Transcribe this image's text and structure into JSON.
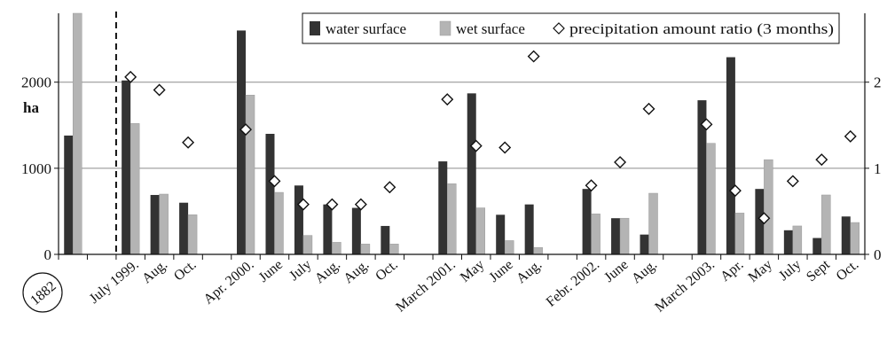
{
  "chart_data": {
    "type": "bar",
    "ylabel": "ha",
    "ylim": [
      0,
      2800
    ],
    "y2lim": [
      0,
      2.8
    ],
    "y_ticks": [
      "0",
      "1000",
      "2000"
    ],
    "y_tick_values": [
      0,
      1000,
      2000
    ],
    "y2_ticks": [
      "0",
      "1",
      "2"
    ],
    "y2_tick_values": [
      0,
      1,
      2
    ],
    "grid": true,
    "legend_position": "top-right",
    "categories": [
      "1882",
      "",
      "July 1999.",
      "Aug.",
      "Oct.",
      "",
      "Apr. 2000.",
      "June",
      "July",
      "Aug.",
      "Aug.",
      "Oct.",
      "",
      "March 2001.",
      "May",
      "June",
      "Aug.",
      "",
      "Febr. 2002.",
      "June",
      "Aug.",
      "",
      "March 2003.",
      "Apr.",
      "May",
      "July",
      "Sept",
      "Oct."
    ],
    "reference_category": "1882",
    "dashed_separator_after_index": 1,
    "series": [
      {
        "name": "water surface",
        "kind": "bar",
        "color": "#333333",
        "values": [
          1380,
          null,
          2020,
          690,
          600,
          null,
          2600,
          1400,
          800,
          580,
          540,
          330,
          null,
          1080,
          1870,
          460,
          580,
          null,
          760,
          420,
          230,
          null,
          1790,
          2290,
          760,
          280,
          190,
          440
        ]
      },
      {
        "name": "wet surface",
        "kind": "bar",
        "color": "#b4b4b4",
        "values": [
          2800,
          null,
          1520,
          700,
          460,
          null,
          1850,
          720,
          220,
          140,
          120,
          120,
          null,
          820,
          540,
          160,
          80,
          null,
          470,
          420,
          710,
          null,
          1290,
          480,
          1100,
          330,
          690,
          370
        ]
      },
      {
        "name": "precipitation amount ratio (3 months)",
        "kind": "marker",
        "axis": "right",
        "values": [
          null,
          null,
          2.06,
          1.91,
          1.3,
          null,
          1.45,
          0.85,
          0.58,
          0.58,
          0.58,
          0.78,
          null,
          1.8,
          1.26,
          1.24,
          2.3,
          null,
          0.8,
          1.07,
          1.69,
          null,
          1.51,
          0.74,
          0.42,
          0.85,
          1.1,
          1.37
        ]
      }
    ]
  }
}
